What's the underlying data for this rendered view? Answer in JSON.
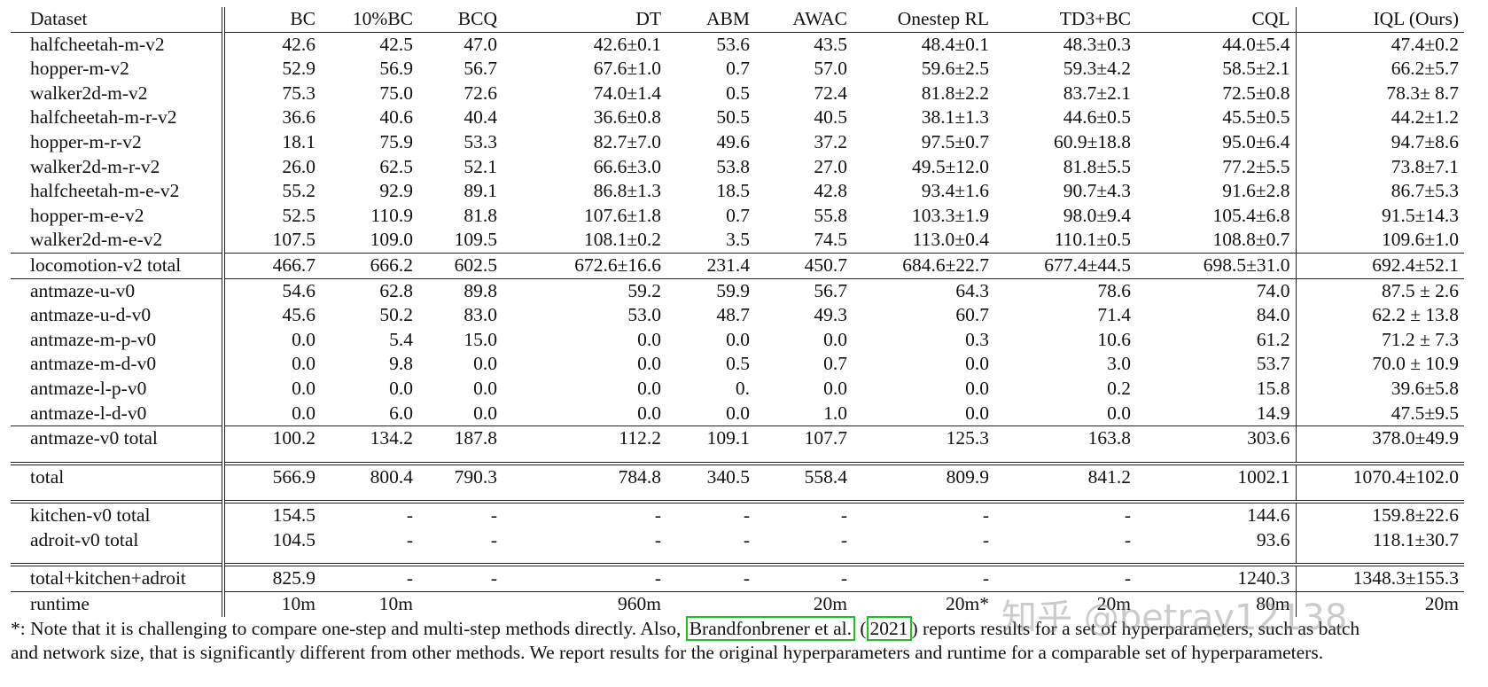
{
  "table": {
    "headers": [
      "Dataset",
      "BC",
      "10%BC",
      "BCQ",
      "DT",
      "ABM",
      "AWAC",
      "Onestep RL",
      "TD3+BC",
      "CQL",
      "IQL (Ours)"
    ],
    "groups": [
      {
        "rows": [
          {
            "cells": [
              "halfcheetah-m-v2",
              "42.6",
              "42.5",
              "47.0",
              "42.6±0.1",
              "53.6",
              "43.5",
              "48.4±0.1",
              "48.3±0.3",
              "44.0±5.4",
              "47.4±0.2"
            ],
            "bold": [
              3,
              7,
              8,
              10
            ]
          },
          {
            "cells": [
              "hopper-m-v2",
              "52.9",
              "56.9",
              "56.7",
              "67.6±1.0",
              "0.7",
              "57.0",
              "59.6±2.5",
              "59.3±4.2",
              "58.5±2.1",
              "66.2±5.7"
            ],
            "bold": [
              4,
              10
            ]
          },
          {
            "cells": [
              "walker2d-m-v2",
              "75.3",
              "75.0",
              "72.6",
              "74.0±1.4",
              "0.5",
              "72.4",
              "81.8±2.2",
              "83.7±2.1",
              "72.5±0.8",
              "78.3± 8.7"
            ],
            "bold": [
              7
            ]
          },
          {
            "cells": [
              "halfcheetah-m-r-v2",
              "36.6",
              "40.6",
              "40.4",
              "36.6±0.8",
              "50.5",
              "40.5",
              "38.1±1.3",
              "44.6±0.5",
              "45.5±0.5",
              "44.2±1.2"
            ],
            "bold": [
              5,
              8,
              9,
              10
            ]
          },
          {
            "cells": [
              "hopper-m-r-v2",
              "18.1",
              "75.9",
              "53.3",
              "82.7±7.0",
              "49.6",
              "37.2",
              "97.5±0.7",
              "60.9±18.8",
              "95.0±6.4",
              "94.7±8.6"
            ],
            "bold": [
              7,
              9,
              10
            ]
          },
          {
            "cells": [
              "walker2d-m-r-v2",
              "26.0",
              "62.5",
              "52.1",
              "66.6±3.0",
              "53.8",
              "27.0",
              "49.5±12.0",
              "81.8±5.5",
              "77.2±5.5",
              "73.8±7.1"
            ],
            "bold": [
              8
            ]
          },
          {
            "cells": [
              "halfcheetah-m-e-v2",
              "55.2",
              "92.9",
              "89.1",
              "86.8±1.3",
              "18.5",
              "42.8",
              "93.4±1.6",
              "90.7±4.3",
              "91.6±2.8",
              "86.7±5.3"
            ],
            "bold": [
              2,
              3,
              7,
              8,
              9
            ]
          },
          {
            "cells": [
              "hopper-m-e-v2",
              "52.5",
              "110.9",
              "81.8",
              "107.6±1.8",
              "0.7",
              "55.8",
              "103.3±1.9",
              "98.0±9.4",
              "105.4±6.8",
              "91.5±14.3"
            ],
            "bold": [
              2,
              4,
              9
            ]
          },
          {
            "cells": [
              "walker2d-m-e-v2",
              "107.5",
              "109.0",
              "109.5",
              "108.1±0.2",
              "3.5",
              "74.5",
              "113.0±0.4",
              "110.1±0.5",
              "108.8±0.7",
              "109.6±1.0"
            ],
            "bold": [
              1,
              2,
              3,
              4,
              7,
              8,
              9,
              10
            ]
          }
        ]
      },
      {
        "rows": [
          {
            "cells": [
              "locomotion-v2 total",
              "466.7",
              "666.2",
              "602.5",
              "672.6±16.6",
              "231.4",
              "450.7",
              "684.6±22.7",
              "677.4±44.5",
              "698.5±31.0",
              "692.4±52.1"
            ],
            "bold": [
              2,
              4,
              7,
              8,
              9,
              10
            ]
          }
        ]
      },
      {
        "rows": [
          {
            "cells": [
              "antmaze-u-v0",
              "54.6",
              "62.8",
              "89.8",
              "59.2",
              "59.9",
              "56.7",
              "64.3",
              "78.6",
              "74.0",
              "87.5 ± 2.6"
            ],
            "bold": [
              3,
              10
            ]
          },
          {
            "cells": [
              "antmaze-u-d-v0",
              "45.6",
              "50.2",
              "83.0",
              "53.0",
              "48.7",
              "49.3",
              "60.7",
              "71.4",
              "84.0",
              "62.2 ± 13.8"
            ],
            "bold": [
              3,
              9
            ]
          },
          {
            "cells": [
              "antmaze-m-p-v0",
              "0.0",
              "5.4",
              "15.0",
              "0.0",
              "0.0",
              "0.0",
              "0.3",
              "10.6",
              "61.2",
              "71.2 ± 7.3"
            ],
            "bold": [
              10
            ]
          },
          {
            "cells": [
              "antmaze-m-d-v0",
              "0.0",
              "9.8",
              "0.0",
              "0.0",
              "0.5",
              "0.7",
              "0.0",
              "3.0",
              "53.7",
              "70.0 ± 10.9"
            ],
            "bold": [
              10
            ]
          },
          {
            "cells": [
              "antmaze-l-p-v0",
              "0.0",
              "0.0",
              "0.0",
              "0.0",
              "0.",
              "0.0",
              "0.0",
              "0.2",
              "15.8",
              "39.6±5.8"
            ],
            "bold": [
              10
            ]
          },
          {
            "cells": [
              "antmaze-l-d-v0",
              "0.0",
              "6.0",
              "0.0",
              "0.0",
              "0.0",
              "1.0",
              "0.0",
              "0.0",
              "14.9",
              "47.5±9.5"
            ],
            "bold": [
              10
            ]
          }
        ]
      },
      {
        "rows": [
          {
            "cells": [
              "antmaze-v0 total",
              "100.2",
              "134.2",
              "187.8",
              "112.2",
              "109.1",
              "107.7",
              "125.3",
              "163.8",
              "303.6",
              "378.0±49.9"
            ],
            "bold": [
              10
            ]
          }
        ]
      },
      {
        "double": true,
        "rows": [
          {
            "cells": [
              "total",
              "566.9",
              "800.4",
              "790.3",
              "784.8",
              "340.5",
              "558.4",
              "809.9",
              "841.2",
              "1002.1",
              "1070.4±102.0"
            ],
            "bold": [
              10
            ]
          }
        ]
      },
      {
        "double": true,
        "rows": [
          {
            "cells": [
              "kitchen-v0 total",
              "154.5",
              "-",
              "-",
              "-",
              "-",
              "-",
              "-",
              "-",
              "144.6",
              "159.8±22.6"
            ],
            "bold": [
              1,
              10
            ]
          },
          {
            "cells": [
              "adroit-v0 total",
              "104.5",
              "-",
              "-",
              "-",
              "-",
              "-",
              "-",
              "-",
              "93.6",
              "118.1±30.7"
            ],
            "bold": [
              10
            ]
          }
        ]
      },
      {
        "double": true,
        "rows": [
          {
            "cells": [
              "total+kitchen+adroit",
              "825.9",
              "-",
              "-",
              "-",
              "-",
              "-",
              "-",
              "-",
              "1240.3",
              "1348.3±155.3"
            ],
            "bold": [
              10
            ]
          }
        ]
      },
      {
        "rows": [
          {
            "cells": [
              "runtime",
              "10m",
              "10m",
              "",
              "960m",
              "",
              "20m",
              "20m*",
              "20m",
              "80m",
              "20m"
            ],
            "bold": []
          }
        ]
      }
    ]
  },
  "footnote": {
    "line1_a": "*: Note that it is challenging to compare one-step and multi-step methods directly. Also, ",
    "cite_author": "Brandfonbrener et al.",
    "cite_open": " (",
    "cite_year": "2021",
    "line1_b": ") reports results for a set of hyperparameters, such as batch",
    "line2": "and network size, that is significantly different from other methods. We report results for the original hyperparameters and runtime for a comparable set of hyperparameters."
  },
  "watermark": "知乎 @betray12138",
  "colors": {
    "cite_box": "#1ec21e",
    "text": "#111111"
  }
}
